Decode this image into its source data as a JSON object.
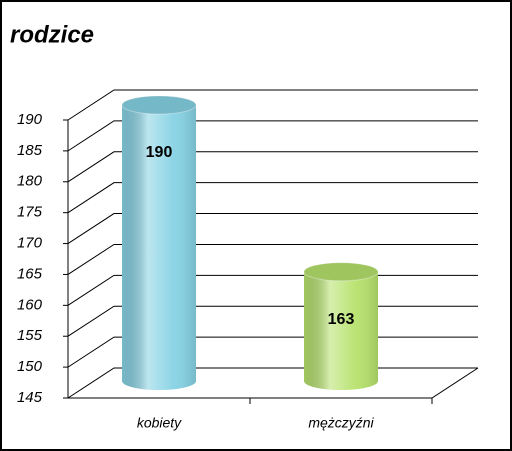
{
  "chart_data": {
    "type": "bar3d",
    "title": "rodzice",
    "categories": [
      "kobiety",
      "mężczyźni"
    ],
    "values": [
      190,
      163
    ],
    "colors": [
      "#86d2e4",
      "#b6e26c"
    ],
    "ylim": [
      145,
      190
    ],
    "yticks": [
      145,
      150,
      155,
      160,
      165,
      170,
      175,
      180,
      185,
      190
    ],
    "grid": true
  }
}
